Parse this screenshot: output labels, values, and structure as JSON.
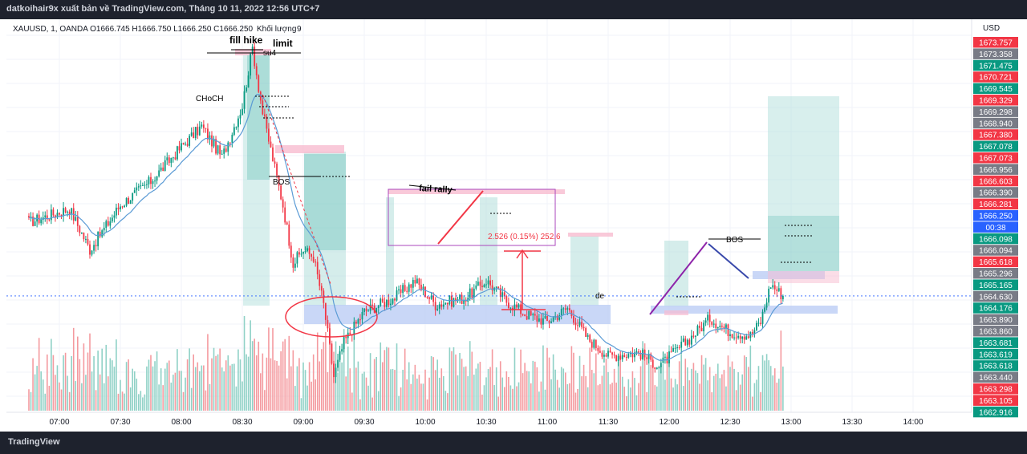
{
  "header": {
    "publish_line": "datkoihair9x xuất bản về TradingView.com, Tháng 10 11, 2022 12:56 UTC+7"
  },
  "footer": {
    "logo_text": "TradingView"
  },
  "legend": {
    "symbol_line": "XAUUSD, 1, OANDA O1666.745 H1666.750 L1666.250 C1666.250",
    "volume_label": "Khối lượng",
    "volume_value": "9"
  },
  "price_axis": {
    "currency": "USD"
  },
  "annotations": {
    "fill_hike": "fill hike",
    "limit": "limit",
    "su4": "su4",
    "choch": "CHoCH",
    "bos_left": "BOS",
    "fail_rally": "fail rally",
    "stats": "2.526 (0.15%) 252.6",
    "de": "de",
    "bos_right": "BOS"
  },
  "chart_data": {
    "type": "candlestick",
    "symbol": "XAUUSD",
    "timeframe": "1",
    "broker": "OANDA",
    "ohlc_last": {
      "open": 1666.745,
      "high": 1666.75,
      "low": 1666.25,
      "close": 1666.25
    },
    "x_ticks": [
      "07:00",
      "07:30",
      "08:00",
      "08:30",
      "09:00",
      "09:30",
      "10:00",
      "10:30",
      "11:00",
      "11:30",
      "12:00",
      "12:30",
      "13:00",
      "13:30",
      "14:00"
    ],
    "ylim": [
      1662.9,
      1674.0
    ],
    "price_labels": [
      {
        "text": "1673.757",
        "color": "#f23645"
      },
      {
        "text": "1673.358",
        "color": "#787b86"
      },
      {
        "text": "1671.475",
        "color": "#089981"
      },
      {
        "text": "1670.721",
        "color": "#f23645"
      },
      {
        "text": "1669.545",
        "color": "#089981"
      },
      {
        "text": "1669.329",
        "color": "#f23645"
      },
      {
        "text": "1669.298",
        "color": "#787b86"
      },
      {
        "text": "1668.940",
        "color": "#787b86"
      },
      {
        "text": "1667.380",
        "color": "#f23645"
      },
      {
        "text": "1667.078",
        "color": "#089981"
      },
      {
        "text": "1667.073",
        "color": "#f23645"
      },
      {
        "text": "1666.956",
        "color": "#787b86"
      },
      {
        "text": "1666.603",
        "color": "#f23645"
      },
      {
        "text": "1666.390",
        "color": "#787b86"
      },
      {
        "text": "1666.281",
        "color": "#f23645"
      },
      {
        "text": "1666.250",
        "color": "#2962ff"
      },
      {
        "text": "00:38",
        "color": "#2962ff"
      },
      {
        "text": "1666.098",
        "color": "#089981"
      },
      {
        "text": "1666.094",
        "color": "#787b86"
      },
      {
        "text": "1665.618",
        "color": "#f23645"
      },
      {
        "text": "1665.296",
        "color": "#787b86"
      },
      {
        "text": "1665.165",
        "color": "#089981"
      },
      {
        "text": "1664.630",
        "color": "#787b86"
      },
      {
        "text": "1664.176",
        "color": "#089981"
      },
      {
        "text": "1663.890",
        "color": "#787b86"
      },
      {
        "text": "1663.860",
        "color": "#787b86"
      },
      {
        "text": "1663.681",
        "color": "#089981"
      },
      {
        "text": "1663.619",
        "color": "#089981"
      },
      {
        "text": "1663.618",
        "color": "#089981"
      },
      {
        "text": "1663.440",
        "color": "#787b86"
      },
      {
        "text": "1663.298",
        "color": "#f23645"
      },
      {
        "text": "1663.105",
        "color": "#f23645"
      },
      {
        "text": "1662.916",
        "color": "#089981"
      }
    ],
    "key_prices": [
      {
        "time": "06:45",
        "price": 1668.4
      },
      {
        "time": "07:05",
        "price": 1668.8
      },
      {
        "time": "07:15",
        "price": 1667.6
      },
      {
        "time": "07:30",
        "price": 1668.9
      },
      {
        "time": "07:45",
        "price": 1669.6
      },
      {
        "time": "08:00",
        "price": 1670.6
      },
      {
        "time": "08:10",
        "price": 1671.2
      },
      {
        "time": "08:20",
        "price": 1670.3
      },
      {
        "time": "08:30",
        "price": 1671.8
      },
      {
        "time": "08:35",
        "price": 1673.5
      },
      {
        "time": "08:40",
        "price": 1671.6
      },
      {
        "time": "08:50",
        "price": 1668.9
      },
      {
        "time": "08:55",
        "price": 1667.2
      },
      {
        "time": "09:00",
        "price": 1667.6
      },
      {
        "time": "09:05",
        "price": 1667.4
      },
      {
        "time": "09:10",
        "price": 1666.0
      },
      {
        "time": "09:15",
        "price": 1663.9
      },
      {
        "time": "09:20",
        "price": 1664.9
      },
      {
        "time": "09:30",
        "price": 1665.8
      },
      {
        "time": "09:45",
        "price": 1666.2
      },
      {
        "time": "09:55",
        "price": 1666.7
      },
      {
        "time": "10:05",
        "price": 1666.0
      },
      {
        "time": "10:20",
        "price": 1666.2
      },
      {
        "time": "10:30",
        "price": 1666.7
      },
      {
        "time": "10:40",
        "price": 1666.1
      },
      {
        "time": "10:50",
        "price": 1665.7
      },
      {
        "time": "11:00",
        "price": 1665.5
      },
      {
        "time": "11:10",
        "price": 1665.9
      },
      {
        "time": "11:20",
        "price": 1665.0
      },
      {
        "time": "11:30",
        "price": 1664.5
      },
      {
        "time": "11:45",
        "price": 1664.6
      },
      {
        "time": "11:55",
        "price": 1664.2
      },
      {
        "time": "12:10",
        "price": 1665.0
      },
      {
        "time": "12:20",
        "price": 1665.6
      },
      {
        "time": "12:30",
        "price": 1665.2
      },
      {
        "time": "12:40",
        "price": 1665.1
      },
      {
        "time": "12:45",
        "price": 1665.5
      },
      {
        "time": "12:50",
        "price": 1666.6
      },
      {
        "time": "12:56",
        "price": 1666.25
      }
    ],
    "colors": {
      "up": "#089981",
      "down": "#f23645",
      "ma": "#5b9bd5",
      "current": "#2962ff"
    }
  }
}
